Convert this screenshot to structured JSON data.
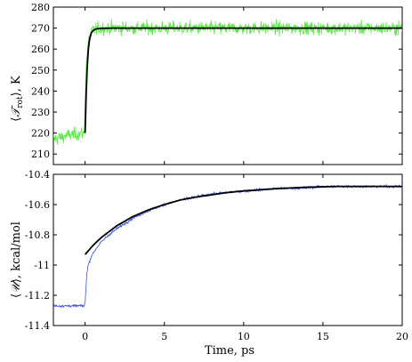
{
  "chart_data": [
    {
      "type": "line",
      "panel": "top",
      "ylabel_parts": {
        "open": "⟨",
        "symbol": "𝒯",
        "subscript": "rot",
        "close": "⟩",
        "unit": ", K"
      },
      "xlim": [
        -2,
        20
      ],
      "ylim": [
        205,
        280
      ],
      "yticks": [
        210,
        220,
        230,
        240,
        250,
        260,
        270,
        280
      ],
      "grid": false,
      "series": [
        {
          "style": "noisy-data",
          "color": "#5ee84a",
          "x": [
            -2,
            -1.5,
            -1,
            -0.5,
            -0.05,
            0,
            0.05,
            0.1,
            0.2,
            0.3,
            0.4,
            0.5,
            0.7,
            1,
            2,
            5,
            10,
            15,
            20
          ],
          "values": [
            217,
            218,
            219,
            219.5,
            220,
            235,
            249,
            256,
            263,
            266.5,
            268,
            269,
            269.5,
            270,
            270,
            270,
            270,
            270,
            270
          ],
          "noise": 2.2
        },
        {
          "style": "fit",
          "color": "#000000",
          "x": [
            0,
            0.05,
            0.1,
            0.15,
            0.2,
            0.25,
            0.3,
            0.4,
            0.5,
            0.7,
            1,
            2,
            5,
            10,
            15,
            20
          ],
          "values": [
            220,
            235,
            246,
            254,
            259.5,
            263,
            265.5,
            267.8,
            268.9,
            269.6,
            269.9,
            270,
            270,
            270,
            270,
            270
          ]
        }
      ]
    },
    {
      "type": "line",
      "panel": "bottom",
      "ylabel_parts": {
        "open": "⟨",
        "symbol": "𝒰",
        "close": "⟩",
        "unit": ", kcal/mol"
      },
      "xlabel": "Time, ps",
      "xlim": [
        -2,
        20
      ],
      "ylim": [
        -11.4,
        -10.4
      ],
      "yticks": [
        -11.4,
        -11.2,
        -11,
        -10.8,
        -10.6,
        -10.4
      ],
      "ytick_labels": [
        "-11.4",
        "-11.2",
        "-11",
        "-10.8",
        "-10.6",
        "-10.4"
      ],
      "xticks": [
        0,
        5,
        10,
        15,
        20
      ],
      "grid": false,
      "series": [
        {
          "style": "noisy-data",
          "color": "#3a55e0",
          "x": [
            -2,
            -1,
            -0.05,
            0,
            0.05,
            0.1,
            0.2,
            0.4,
            0.7,
            1,
            1.5,
            2,
            3,
            4,
            5,
            6,
            7,
            8,
            9,
            10,
            12,
            14,
            15,
            16,
            18,
            20
          ],
          "values": [
            -11.27,
            -11.27,
            -11.27,
            -11.25,
            -11.16,
            -11.06,
            -11.0,
            -10.94,
            -10.89,
            -10.85,
            -10.8,
            -10.76,
            -10.69,
            -10.64,
            -10.6,
            -10.57,
            -10.55,
            -10.53,
            -10.52,
            -10.51,
            -10.495,
            -10.49,
            -10.48,
            -10.48,
            -10.48,
            -10.48
          ],
          "noise": 0.006
        },
        {
          "style": "fit",
          "color": "#000000",
          "x": [
            0,
            0.5,
            1,
            1.5,
            2,
            3,
            4,
            5,
            6,
            7,
            8,
            9,
            10,
            12,
            14,
            16,
            18,
            20
          ],
          "values": [
            -10.93,
            -10.87,
            -10.82,
            -10.78,
            -10.74,
            -10.68,
            -10.635,
            -10.6,
            -10.57,
            -10.55,
            -10.535,
            -10.52,
            -10.51,
            -10.495,
            -10.485,
            -10.48,
            -10.48,
            -10.48
          ]
        }
      ]
    }
  ]
}
